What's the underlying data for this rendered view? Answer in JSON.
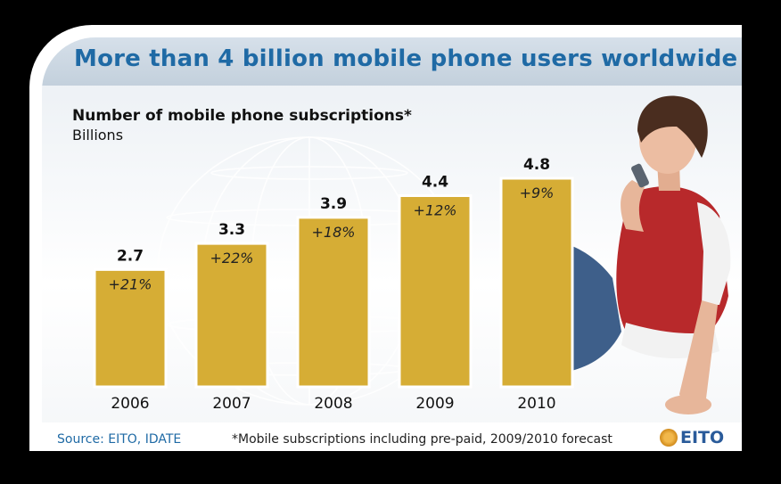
{
  "headline": "More than 4 billion mobile phone users worldwide",
  "source": "Source: EITO, IDATE",
  "footnote": "*Mobile subscriptions including pre-paid, 2009/2010 forecast",
  "logo_text": "EITO",
  "colors": {
    "bar": "#d6ad35",
    "bar_border": "#ffffff",
    "headline": "#1f6aa5"
  },
  "chart_data": {
    "type": "bar",
    "title": "Number of mobile phone subscriptions*",
    "ylabel": "Billions",
    "categories": [
      "2006",
      "2007",
      "2008",
      "2009",
      "2010"
    ],
    "values": [
      2.7,
      3.3,
      3.9,
      4.4,
      4.8
    ],
    "value_labels": [
      "2.7",
      "3.3",
      "3.9",
      "4.4",
      "4.8"
    ],
    "growth_labels": [
      "+21%",
      "+22%",
      "+18%",
      "+12%",
      "+9%"
    ],
    "ylim": [
      0,
      4.8
    ],
    "grid": false,
    "legend": "none"
  }
}
